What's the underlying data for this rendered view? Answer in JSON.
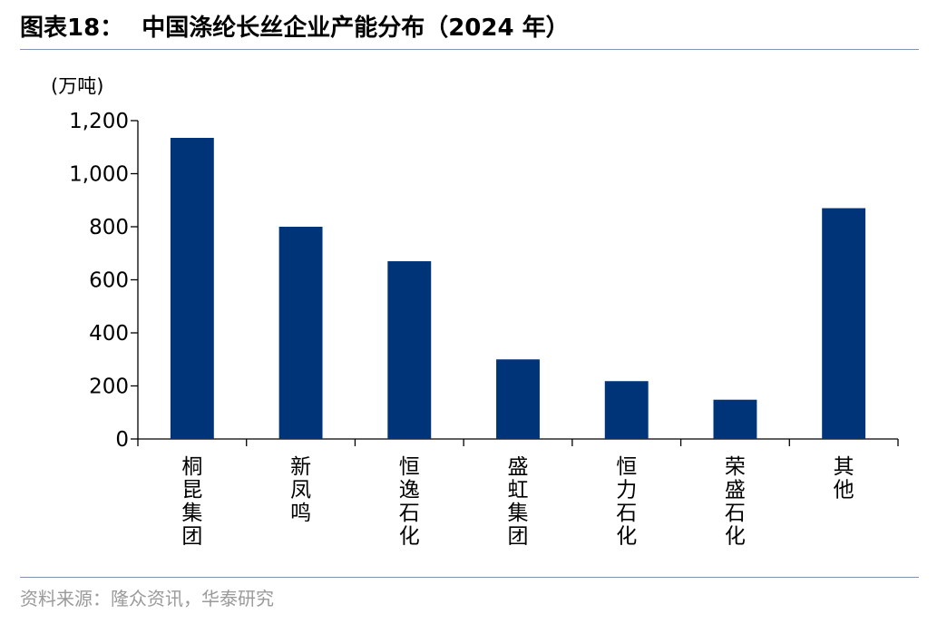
{
  "figure": {
    "label": "图表18：",
    "title": "中国涤纶长丝企业产能分布（2024 年）",
    "unit": "(万吨)",
    "source": "资料来源：隆众资讯，华泰研究"
  },
  "colors": {
    "bar": "#003478",
    "rule": "#7f93b3",
    "source_text": "#9a9a9a"
  },
  "chart_data": {
    "type": "bar",
    "title": "中国涤纶长丝企业产能分布（2024 年）",
    "ylabel": "(万吨)",
    "xlabel": "",
    "ylim": [
      0,
      1200
    ],
    "yticks": [
      0,
      200,
      400,
      600,
      800,
      1000,
      1200
    ],
    "ytick_labels": [
      "0",
      "200",
      "400",
      "600",
      "800",
      "1,000",
      "1,200"
    ],
    "categories": [
      "桐昆集团",
      "新凤鸣",
      "恒逸石化",
      "盛虹集团",
      "恒力石化",
      "荣盛石化",
      "其他"
    ],
    "values": [
      1135,
      800,
      670,
      300,
      218,
      148,
      870
    ],
    "grid": false,
    "legend": "none",
    "category_label_orientation": "vertical"
  }
}
